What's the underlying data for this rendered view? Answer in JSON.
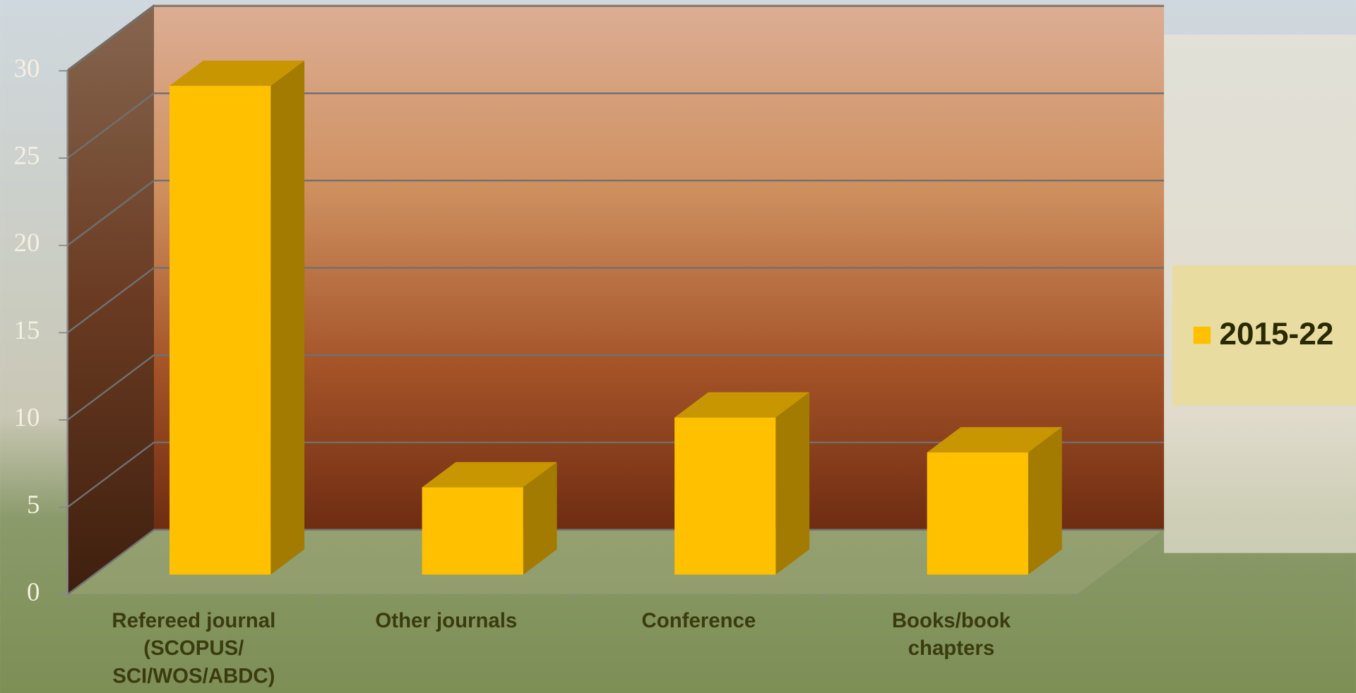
{
  "chart_data": {
    "type": "bar3d",
    "categories": [
      "Refereed journal (SCOPUS/ SCI/WOS/ABDC)",
      "Other journals",
      "Conference",
      "Books/book chapters"
    ],
    "series": [
      {
        "name": "2015-22",
        "color": "#FFC000",
        "values": [
          28,
          5,
          9,
          7
        ]
      }
    ],
    "ylim": [
      0,
      30
    ],
    "yticks": [
      0,
      5,
      10,
      15,
      20,
      25,
      30
    ],
    "grid": true,
    "legend": "right"
  }
}
